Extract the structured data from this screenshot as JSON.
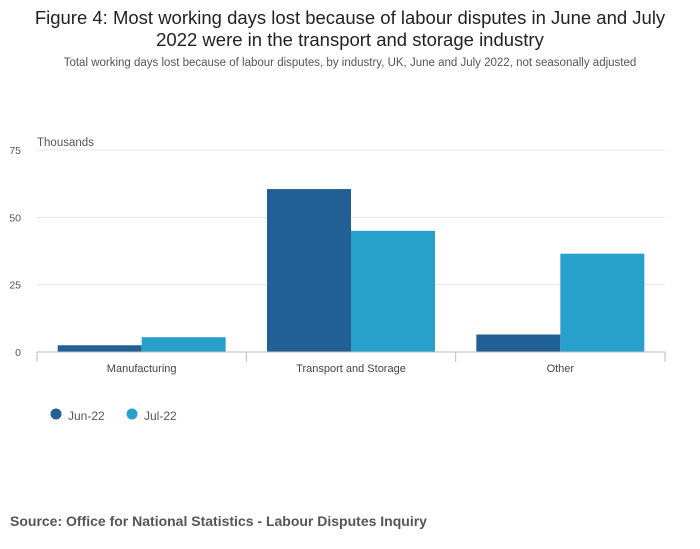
{
  "title": "Figure 4: Most working days lost because of labour disputes in June and July 2022 were in the transport and storage industry",
  "subtitle": "Total working days lost because of labour disputes, by industry, UK, June and July 2022, not seasonally adjusted",
  "source": "Source: Office for National Statistics - Labour Disputes Inquiry",
  "chart_data": {
    "type": "bar",
    "title": "Figure 4: Most working days lost because of labour disputes in June and July 2022 were in the transport and storage industry",
    "subtitle": "Total working days lost because of labour disputes, by industry, UK, June and July 2022, not seasonally adjusted",
    "ylabel": "Thousands",
    "xlabel": "",
    "categories": [
      "Manufacturing",
      "Transport and Storage",
      "Other"
    ],
    "series": [
      {
        "name": "Jun-22",
        "values": [
          2.5,
          60.5,
          6.5
        ],
        "color": "#206095"
      },
      {
        "name": "Jul-22",
        "values": [
          5.5,
          45,
          36.5
        ],
        "color": "#27a0cc"
      }
    ],
    "ylim": [
      0,
      75
    ],
    "yticks": [
      "0",
      "25",
      "50",
      "75"
    ],
    "grid": true,
    "legend_position": "bottom-left"
  }
}
